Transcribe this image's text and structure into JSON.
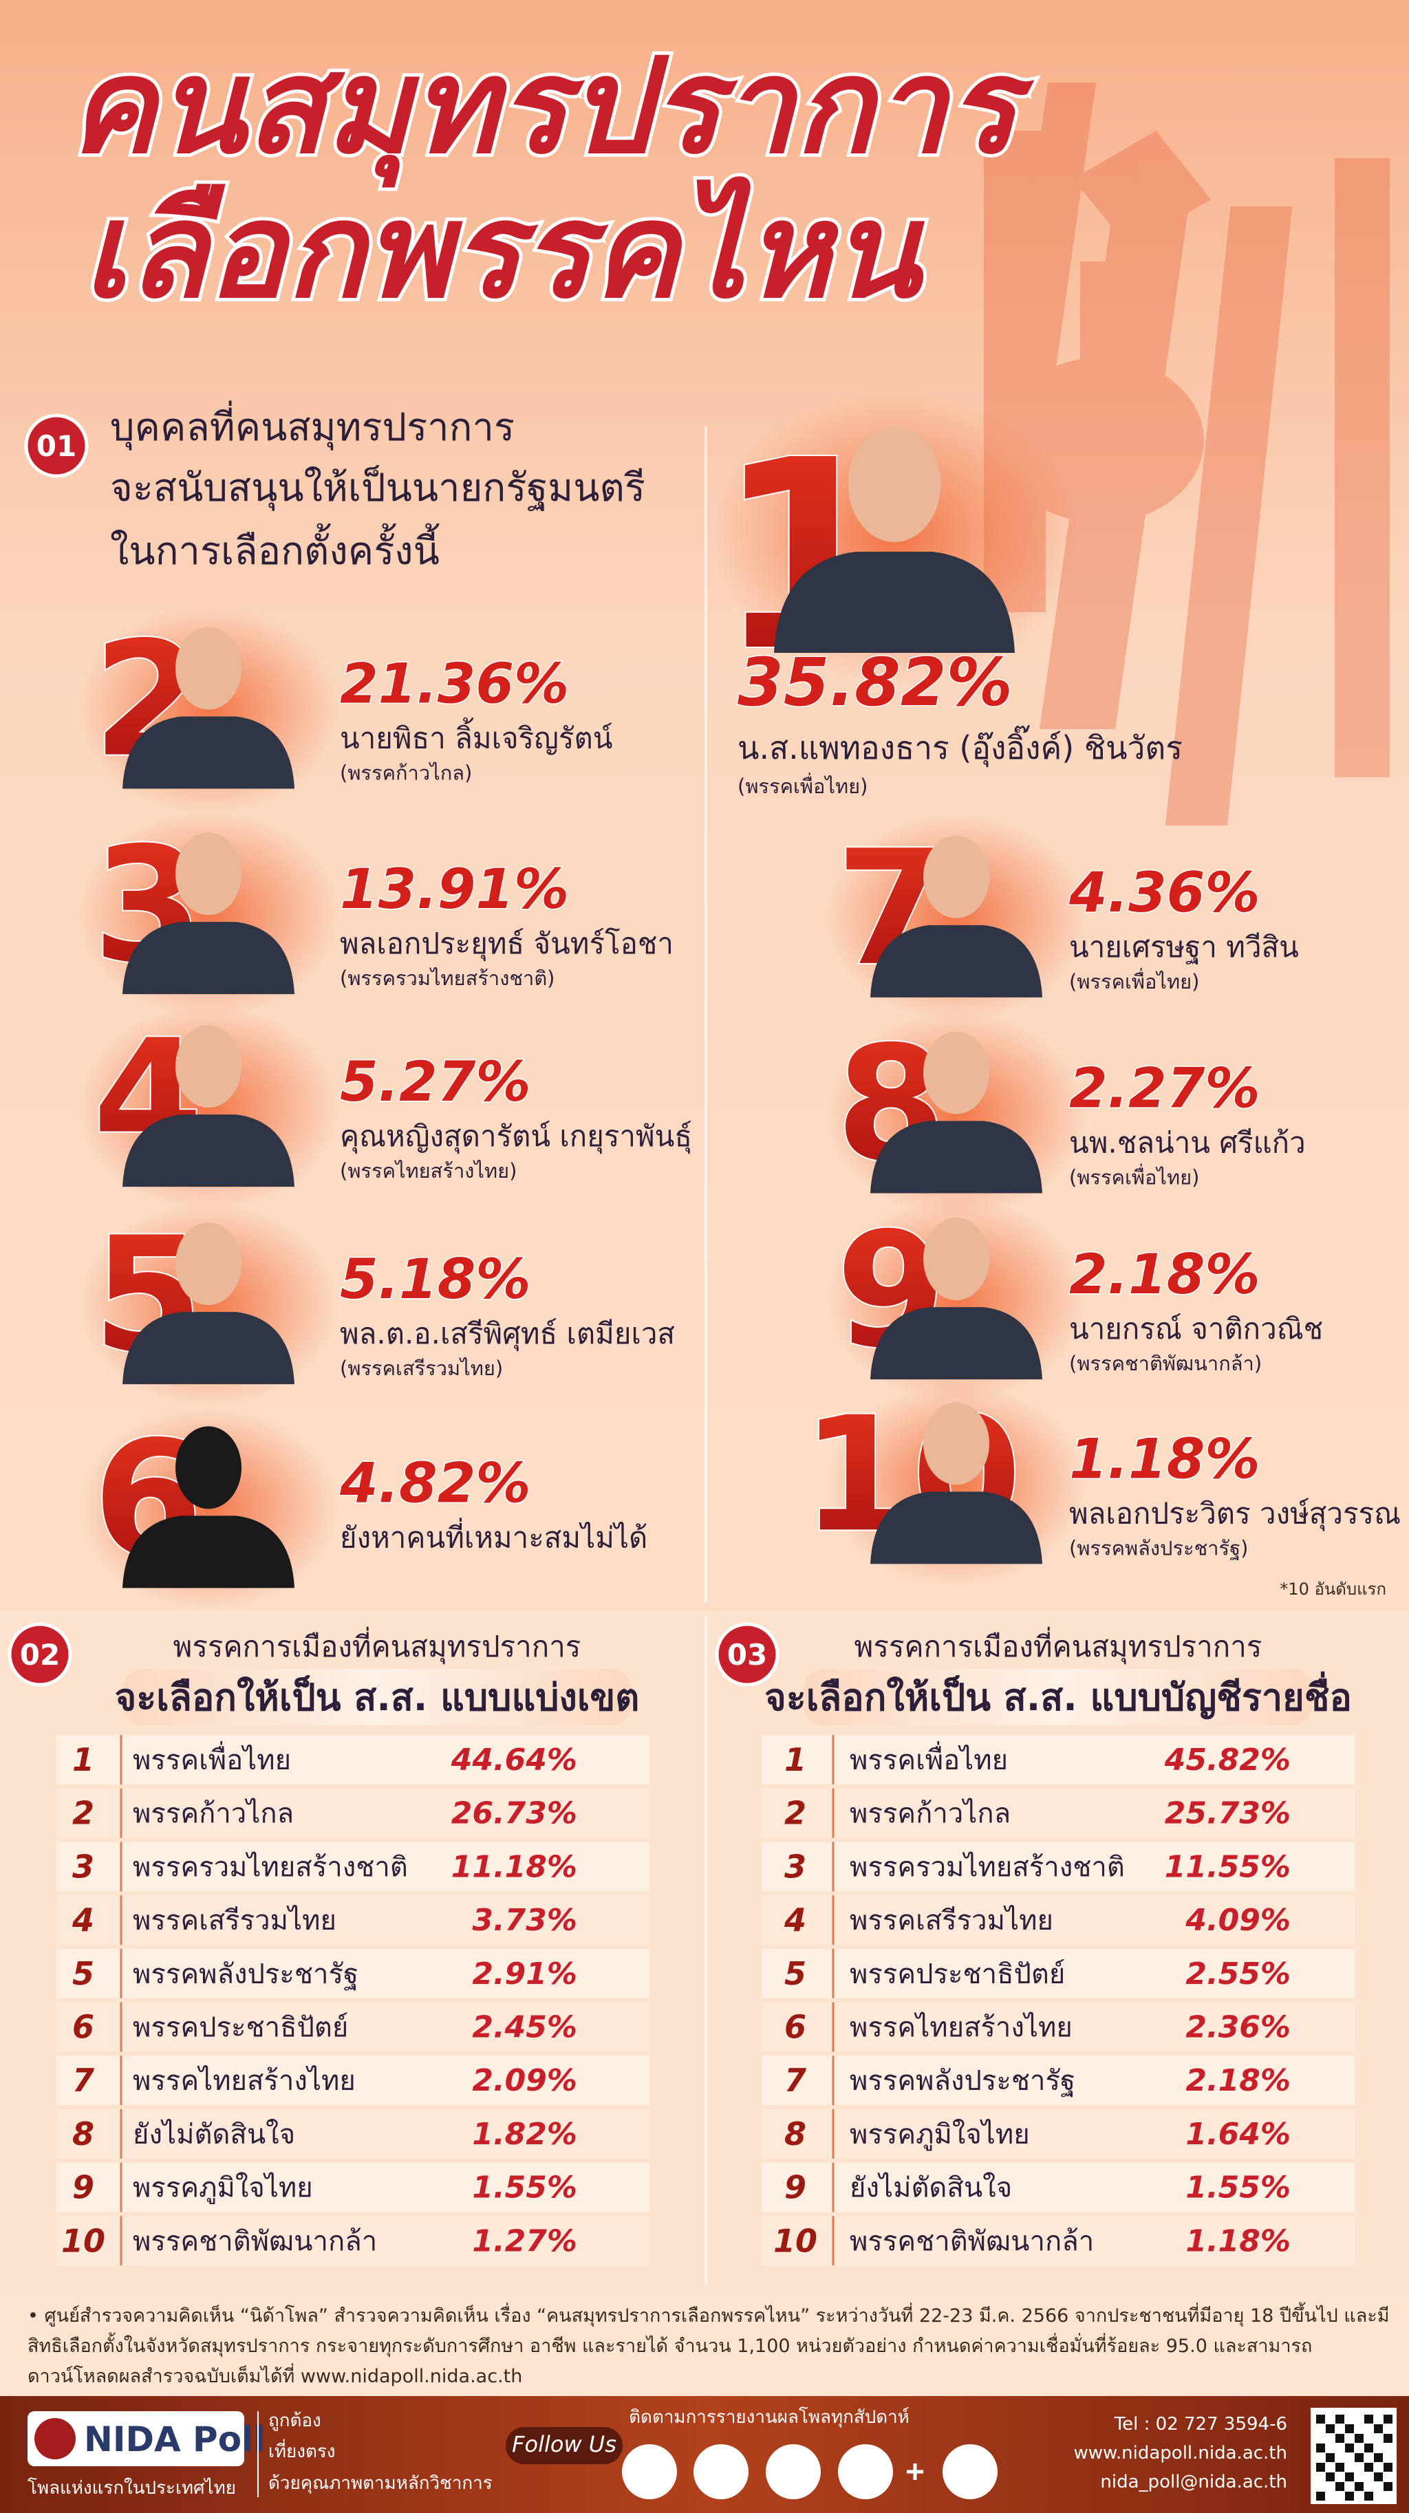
{
  "header": {
    "title_lines": [
      "คนสมุทรปราการ",
      "เลือกพรรคไหน"
    ]
  },
  "section1": {
    "number": "01",
    "title_lines": [
      "บุคคลที่คนสมุทรปราการ",
      "จะสนับสนุนให้เป็นนายกรัฐมนตรี",
      "ในการเลือกตั้งครั้งนี้"
    ],
    "candidates": [
      {
        "rank": "1",
        "percent": "35.82%",
        "name": "น.ส.แพทองธาร (อุ๊งอิ๊งค์) ชินวัตร",
        "party": "(พรรคเพื่อไทย)"
      },
      {
        "rank": "2",
        "percent": "21.36%",
        "name": "นายพิธา ลิ้มเจริญรัตน์",
        "party": "(พรรคก้าวไกล)"
      },
      {
        "rank": "3",
        "percent": "13.91%",
        "name": "พลเอกประยุทธ์ จันทร์โอชา",
        "party": "(พรรครวมไทยสร้างชาติ)"
      },
      {
        "rank": "4",
        "percent": "5.27%",
        "name": "คุณหญิงสุดารัตน์ เกยุราพันธุ์",
        "party": "(พรรคไทยสร้างไทย)"
      },
      {
        "rank": "5",
        "percent": "5.18%",
        "name": "พล.ต.อ.เสรีพิศุทธ์ เตมียเวส",
        "party": "(พรรคเสรีรวมไทย)"
      },
      {
        "rank": "6",
        "percent": "4.82%",
        "name": "ยังหาคนที่เหมาะสมไม่ได้"
      },
      {
        "rank": "7",
        "percent": "4.36%",
        "name": "นายเศรษฐา ทวีสิน",
        "party": "(พรรคเพื่อไทย)"
      },
      {
        "rank": "8",
        "percent": "2.27%",
        "name": "นพ.ชลน่าน ศรีแก้ว",
        "party": "(พรรคเพื่อไทย)"
      },
      {
        "rank": "9",
        "percent": "2.18%",
        "name": "นายกรณ์ จาติกวณิช",
        "party": "(พรรคชาติพัฒนากล้า)"
      },
      {
        "rank": "10",
        "percent": "1.18%",
        "name": "พลเอกประวิตร วงษ์สุวรรณ",
        "party": "(พรรคพลังประชารัฐ)"
      }
    ],
    "note": "*10 อันดับแรก"
  },
  "section2": {
    "number": "02",
    "title_lines": [
      "พรรคการเมืองที่คนสมุทรปราการ",
      "จะเลือกให้เป็น ส.ส. แบบแบ่งเขต"
    ],
    "rows": [
      [
        "1",
        "พรรคเพื่อไทย",
        "44.64%"
      ],
      [
        "2",
        "พรรคก้าวไกล",
        "26.73%"
      ],
      [
        "3",
        "พรรครวมไทยสร้างชาติ",
        "11.18%"
      ],
      [
        "4",
        "พรรคเสรีรวมไทย",
        "3.73%"
      ],
      [
        "5",
        "พรรคพลังประชารัฐ",
        "2.91%"
      ],
      [
        "6",
        "พรรคประชาธิปัตย์",
        "2.45%"
      ],
      [
        "7",
        "พรรคไทยสร้างไทย",
        "2.09%"
      ],
      [
        "8",
        "ยังไม่ตัดสินใจ",
        "1.82%"
      ],
      [
        "9",
        "พรรคภูมิใจไทย",
        "1.55%"
      ],
      [
        "10",
        "พรรคชาติพัฒนากล้า",
        "1.27%"
      ]
    ]
  },
  "section3": {
    "number": "03",
    "title_lines": [
      "พรรคการเมืองที่คนสมุทรปราการ",
      "จะเลือกให้เป็น ส.ส. แบบบัญชีรายชื่อ"
    ],
    "rows": [
      [
        "1",
        "พรรคเพื่อไทย",
        "45.82%"
      ],
      [
        "2",
        "พรรคก้าวไกล",
        "25.73%"
      ],
      [
        "3",
        "พรรครวมไทยสร้างชาติ",
        "11.55%"
      ],
      [
        "4",
        "พรรคเสรีรวมไทย",
        "4.09%"
      ],
      [
        "5",
        "พรรคประชาธิปัตย์",
        "2.55%"
      ],
      [
        "6",
        "พรรคไทยสร้างไทย",
        "2.36%"
      ],
      [
        "7",
        "พรรคพลังประชารัฐ",
        "2.18%"
      ],
      [
        "8",
        "พรรคภูมิใจไทย",
        "1.64%"
      ],
      [
        "9",
        "ยังไม่ตัดสินใจ",
        "1.55%"
      ],
      [
        "10",
        "พรรคชาติพัฒนากล้า",
        "1.18%"
      ]
    ]
  },
  "footnote": "ศูนย์สำรวจความคิดเห็น “นิด้าโพล” สำรวจความคิดเห็น เรื่อง “คนสมุทรปราการเลือกพรรคไหน” ระหว่างวันที่ 22-23 มี.ค. 2566 จากประชาชนที่มีอายุ 18 ปีขึ้นไป และมีสิทธิเลือกตั้งในจังหวัดสมุทรปราการ กระจายทุกระดับการศึกษา อาชีพ และรายได้ จำนวน 1,100 หน่วยตัวอย่าง กำหนดค่าความเชื่อมั่นที่ร้อยละ 95.0 และสามารถดาวน์โหลดผลสำรวจฉบับเต็มได้ที่ www.nidapoll.nida.ac.th",
  "footer": {
    "logo": "NIDA Poll",
    "tagline": "โพลแห่งแรกในประเทศไทย",
    "slogans": [
      "ถูกต้อง",
      "เที่ยงตรง",
      "ด้วยคุณภาพตามหลักวิชาการ"
    ],
    "follow_caption": "ติดตามการรายงานผลโพลทุกสัปดาห์",
    "follow": "Follow Us",
    "tel": "Tel : 02 727 3594-6",
    "web": "www.nidapoll.nida.ac.th",
    "email": "nida_poll@nida.ac.th"
  }
}
